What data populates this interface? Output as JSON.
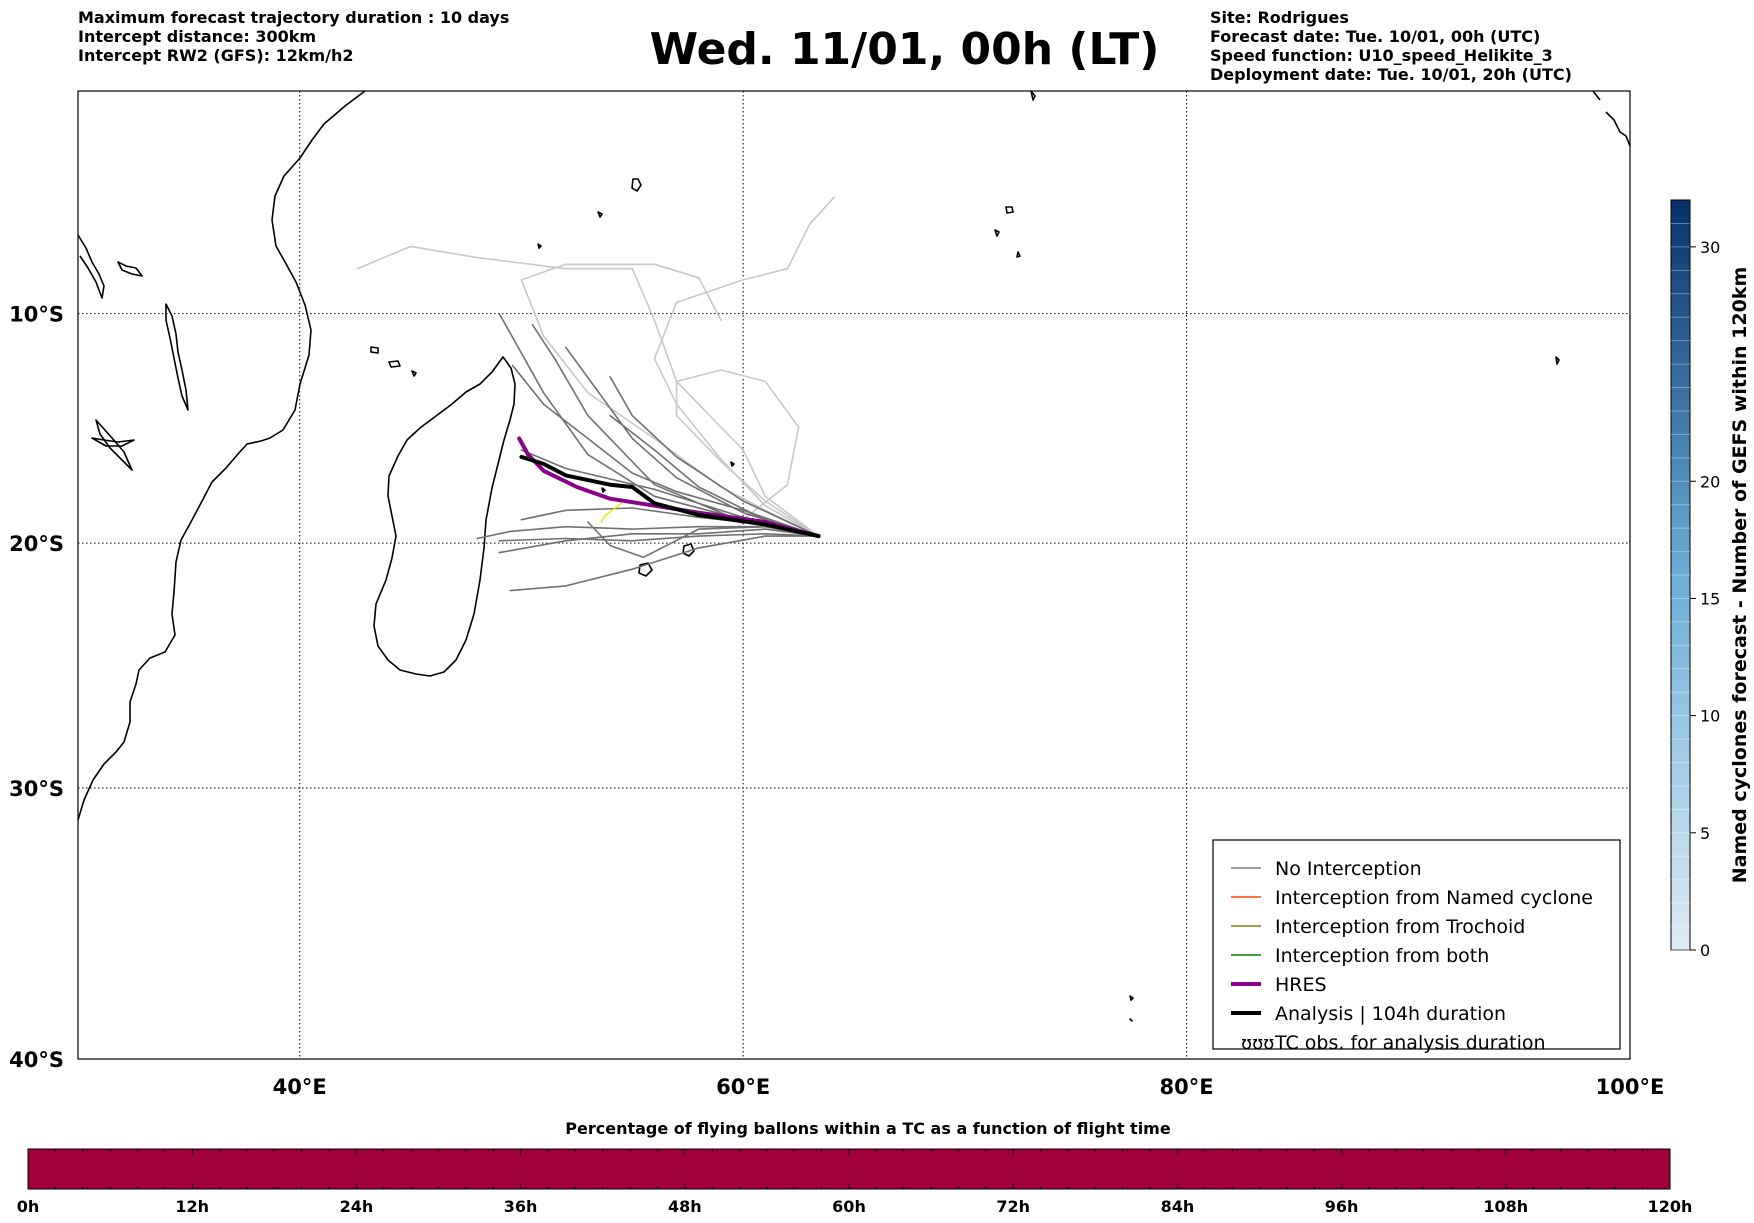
{
  "header_left": [
    "Maximum forecast trajectory duration : 10 days",
    "Intercept distance: 300km",
    "Intercept RW2 (GFS):  12km/h2"
  ],
  "header_right": [
    "Site: Rodrigues",
    "Forecast date: Tue. 10/01, 00h (UTC)",
    "Speed function: U10_speed_Helikite_3",
    "Deployment date: Tue. 10/01, 20h (UTC)"
  ],
  "title": "Wed. 11/01, 00h (LT)",
  "map": {
    "lon_range": [
      30,
      100
    ],
    "lat_range": [
      -40,
      0
    ],
    "lon_ticks": [
      "40°E",
      "60°E",
      "80°E",
      "100°E"
    ],
    "lat_ticks": [
      "10°S",
      "20°S",
      "30°S",
      "40°S"
    ],
    "gridlines": "dotted"
  },
  "legend": {
    "placement": "bottom-right",
    "items": [
      {
        "label": "No Interception",
        "color": "#808080"
      },
      {
        "label": "Interception from Named cyclone",
        "color": "#ff4500"
      },
      {
        "label": "Interception from Trochoid",
        "color": "#808000"
      },
      {
        "label": "Interception from both",
        "color": "#008000"
      },
      {
        "label": "HRES",
        "color": "#8b008b"
      },
      {
        "label": "Analysis | 104h duration",
        "color": "#000000"
      },
      {
        "label": "TC obs. for analysis duration",
        "color": "#000000",
        "symbol": "ʊʊʊ"
      }
    ]
  },
  "colorbar_right": {
    "label": "Named cyclones forecast - Number of GEFS within 120km",
    "ticks": [
      "0",
      "5",
      "10",
      "15",
      "20",
      "30"
    ],
    "range": [
      0,
      32
    ],
    "color_low": "#deebf7",
    "color_high": "#08306b"
  },
  "colorbar_bottom": {
    "title": "Percentage of flying ballons within a TC as a function of flight time",
    "ticks": [
      "0h",
      "12h",
      "24h",
      "36h",
      "48h",
      "60h",
      "72h",
      "84h",
      "96h",
      "108h",
      "120h"
    ],
    "fill_color": "#a0003c"
  },
  "colors": {
    "ensemble": "#707070",
    "ensemble_light": "#c8c8c8",
    "hres": "#8b008b",
    "analysis": "#000000",
    "tc_obs": "#e8e800"
  },
  "chart_data": {
    "type": "line",
    "x": "longitude (°E)",
    "y": "latitude (°)",
    "start_point": [
      63.4,
      -19.7
    ],
    "analysis_track": [
      [
        63.4,
        -19.7
      ],
      [
        61,
        -19.2
      ],
      [
        58,
        -18.8
      ],
      [
        56,
        -18.3
      ],
      [
        55,
        -17.6
      ],
      [
        54,
        -17.5
      ],
      [
        52,
        -17.1
      ],
      [
        51,
        -16.6
      ],
      [
        50,
        -16.3
      ]
    ],
    "hres_track": [
      [
        63.4,
        -19.7
      ],
      [
        61,
        -19.1
      ],
      [
        58,
        -18.7
      ],
      [
        56,
        -18.4
      ],
      [
        54,
        -18.1
      ],
      [
        52.5,
        -17.6
      ],
      [
        51,
        -16.9
      ],
      [
        50.3,
        -16.2
      ],
      [
        49.9,
        -15.5
      ]
    ],
    "ensemble_tracks": [
      [
        [
          63.4,
          -19.7
        ],
        [
          61,
          -19.3
        ],
        [
          58,
          -19.3
        ],
        [
          55,
          -19.4
        ],
        [
          52,
          -19.3
        ],
        [
          49.5,
          -19.5
        ],
        [
          48,
          -19.8
        ]
      ],
      [
        [
          63.4,
          -19.7
        ],
        [
          61,
          -19.6
        ],
        [
          58,
          -19.7
        ],
        [
          55,
          -19.9
        ],
        [
          52,
          -19.8
        ],
        [
          49,
          -19.9
        ]
      ],
      [
        [
          63.4,
          -19.7
        ],
        [
          61,
          -19.7
        ],
        [
          58,
          -20.2
        ],
        [
          55,
          -21.1
        ],
        [
          52,
          -21.8
        ],
        [
          49.5,
          -22
        ]
      ],
      [
        [
          63.4,
          -19.7
        ],
        [
          60,
          -18.6
        ],
        [
          57,
          -17.8
        ],
        [
          55,
          -17
        ],
        [
          53,
          -15.5
        ],
        [
          51,
          -14
        ],
        [
          49.6,
          -12.3
        ]
      ],
      [
        [
          63.4,
          -19.7
        ],
        [
          60,
          -19
        ],
        [
          56,
          -18
        ],
        [
          53,
          -16.2
        ],
        [
          51,
          -13.5
        ],
        [
          49,
          -10
        ]
      ],
      [
        [
          63.4,
          -19.7
        ],
        [
          60,
          -19.1
        ],
        [
          56,
          -17.5
        ],
        [
          53,
          -14.5
        ],
        [
          51.5,
          -12
        ],
        [
          50.5,
          -10.5
        ]
      ],
      [
        [
          63.4,
          -19.7
        ],
        [
          60,
          -18.7
        ],
        [
          57,
          -17.2
        ],
        [
          55,
          -15.5
        ],
        [
          53.5,
          -13.5
        ],
        [
          52,
          -11.5
        ]
      ],
      [
        [
          63.4,
          -19.7
        ],
        [
          61,
          -19
        ],
        [
          58,
          -17.6
        ],
        [
          56,
          -16
        ],
        [
          54,
          -14.5
        ]
      ],
      [
        [
          63.4,
          -19.7
        ],
        [
          61,
          -19.2
        ],
        [
          58,
          -18.9
        ],
        [
          55,
          -18.5
        ],
        [
          52,
          -18.6
        ],
        [
          50,
          -19
        ]
      ],
      [
        [
          63.4,
          -19.7
        ],
        [
          61,
          -19.4
        ],
        [
          58,
          -19.6
        ],
        [
          55,
          -19.6
        ],
        [
          52,
          -19.9
        ],
        [
          49,
          -20.4
        ]
      ],
      [
        [
          63.4,
          -19.7
        ],
        [
          60,
          -18.2
        ],
        [
          57,
          -16.3
        ],
        [
          55,
          -14.5
        ],
        [
          54,
          -12.8
        ]
      ],
      [
        [
          63.4,
          -19.7
        ],
        [
          61,
          -19.3
        ],
        [
          58,
          -19.4
        ],
        [
          55.5,
          -20.6
        ],
        [
          54,
          -20.1
        ],
        [
          53,
          -19.1
        ]
      ],
      [
        [
          63.4,
          -19.7
        ],
        [
          60,
          -18.9
        ],
        [
          56,
          -17.7
        ],
        [
          52,
          -16.8
        ],
        [
          50,
          -16
        ]
      ]
    ],
    "ensemble_tracks_light": [
      [
        [
          63.4,
          -19.7
        ],
        [
          61,
          -18
        ],
        [
          60,
          -16
        ],
        [
          57,
          -13
        ],
        [
          56,
          -10.3
        ],
        [
          55,
          -8
        ],
        [
          52,
          -8
        ],
        [
          48,
          -7.5
        ],
        [
          45,
          -7
        ],
        [
          42.6,
          -8
        ]
      ],
      [
        [
          63.4,
          -19.7
        ],
        [
          61,
          -18.4
        ],
        [
          59,
          -16.4
        ],
        [
          57,
          -14
        ],
        [
          56,
          -12
        ],
        [
          57,
          -9.5
        ],
        [
          60,
          -8.5
        ],
        [
          62,
          -8
        ],
        [
          63,
          -6
        ],
        [
          64.1,
          -4.8
        ]
      ],
      [
        [
          63.4,
          -19.7
        ],
        [
          61,
          -18.2
        ],
        [
          59,
          -16.5
        ],
        [
          57,
          -14.5
        ],
        [
          57,
          -13
        ],
        [
          59,
          -12.5
        ],
        [
          61,
          -13
        ],
        [
          62.5,
          -15
        ],
        [
          62,
          -17.5
        ],
        [
          60,
          -19
        ]
      ],
      [
        [
          63.4,
          -19.7
        ],
        [
          61,
          -18.6
        ],
        [
          59,
          -17.6
        ],
        [
          56,
          -15.5
        ],
        [
          53,
          -13.5
        ],
        [
          51,
          -11
        ],
        [
          50,
          -8.5
        ],
        [
          52,
          -7.8
        ],
        [
          56,
          -7.8
        ],
        [
          58,
          -8.4
        ],
        [
          59,
          -10.3
        ]
      ]
    ],
    "tc_obs_track": [
      [
        54.5,
        -18.3
      ],
      [
        54.1,
        -18.6
      ],
      [
        53.8,
        -18.8
      ],
      [
        53.6,
        -19.1
      ]
    ]
  }
}
